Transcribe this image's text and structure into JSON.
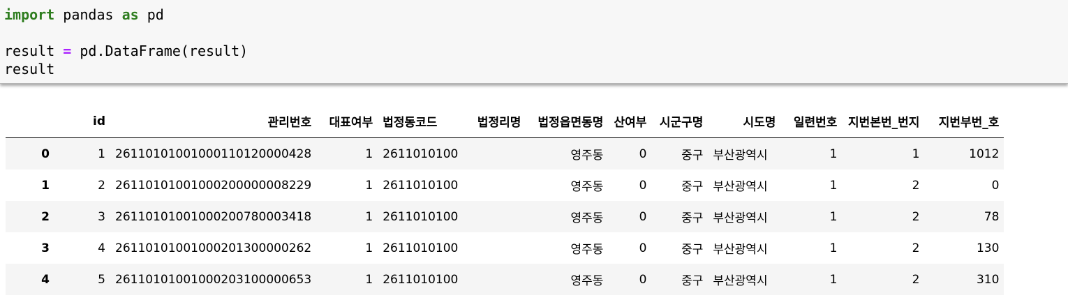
{
  "code": {
    "line1": {
      "kw_import": "import",
      "mid": " pandas ",
      "kw_as": "as",
      "end": " pd"
    },
    "line2": "",
    "line3": {
      "lhs": "result ",
      "op": "=",
      "rhs": " pd.DataFrame(result)"
    },
    "line4": "result"
  },
  "table": {
    "columns": [
      "",
      "id",
      "관리번호",
      "대표여부",
      "법정동코드",
      "법정리명",
      "법정읍면동명",
      "산여부",
      "시군구명",
      "시도명",
      "일련번호",
      "지번본번_번지",
      "지번부번_호"
    ],
    "rows": [
      {
        "index": "0",
        "cells": [
          "1",
          "26110101001000110120000428",
          "1",
          "2611010100",
          "",
          "영주동",
          "0",
          "중구",
          "부산광역시",
          "1",
          "1",
          "1012"
        ]
      },
      {
        "index": "1",
        "cells": [
          "2",
          "26110101001000200000008229",
          "1",
          "2611010100",
          "",
          "영주동",
          "0",
          "중구",
          "부산광역시",
          "1",
          "2",
          "0"
        ]
      },
      {
        "index": "2",
        "cells": [
          "3",
          "26110101001000200780003418",
          "1",
          "2611010100",
          "",
          "영주동",
          "0",
          "중구",
          "부산광역시",
          "1",
          "2",
          "78"
        ]
      },
      {
        "index": "3",
        "cells": [
          "4",
          "26110101001000201300000262",
          "1",
          "2611010100",
          "",
          "영주동",
          "0",
          "중구",
          "부산광역시",
          "1",
          "2",
          "130"
        ]
      },
      {
        "index": "4",
        "cells": [
          "5",
          "26110101001000203100000653",
          "1",
          "2611010100",
          "",
          "영주동",
          "0",
          "중구",
          "부산광역시",
          "1",
          "2",
          "310"
        ]
      }
    ]
  }
}
